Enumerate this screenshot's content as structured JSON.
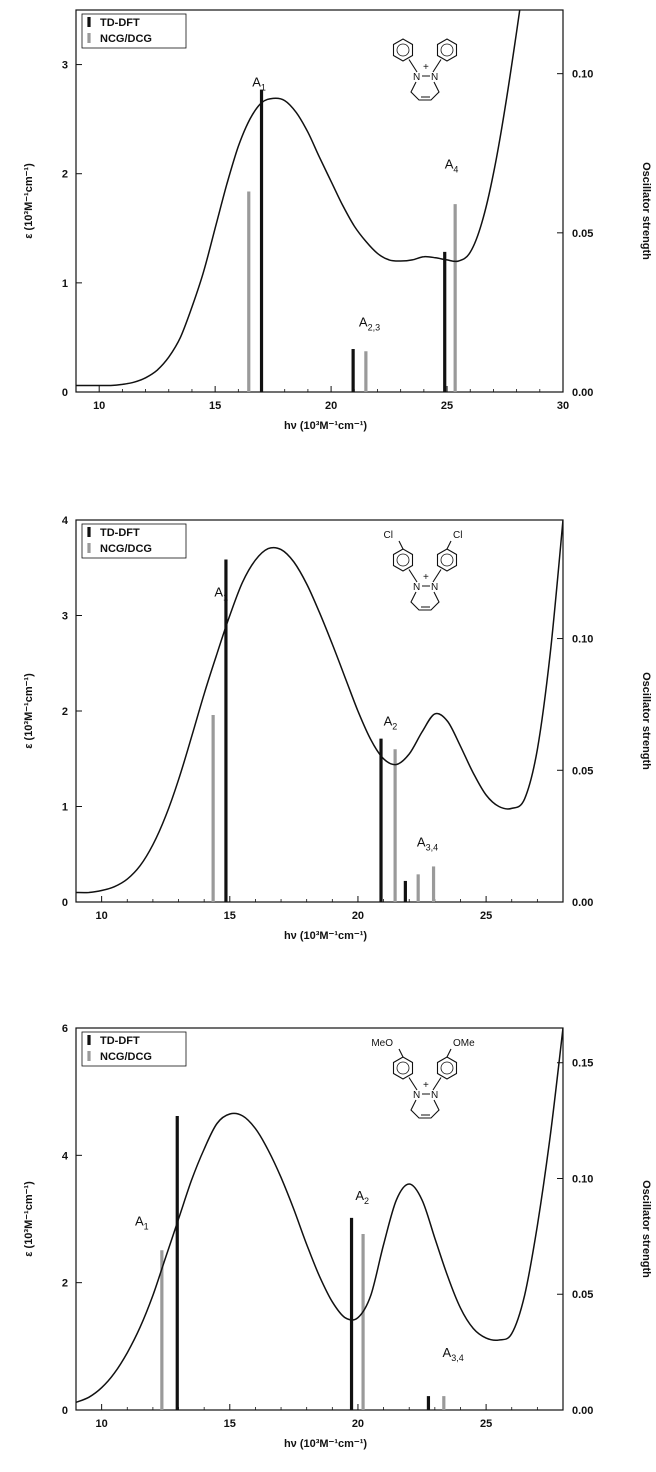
{
  "chart_data": [
    {
      "type": "line",
      "panel": "top",
      "xlim": [
        9,
        30
      ],
      "ylim": [
        0,
        3.5
      ],
      "y2lim": [
        0,
        0.12
      ],
      "xticks": [
        10,
        15,
        20,
        25,
        30
      ],
      "yticks": [
        0,
        1,
        2,
        3
      ],
      "y2ticks": [
        "0.00",
        "0.05",
        "0.10"
      ],
      "xlabel": "hν (10³M⁻¹cm⁻¹)",
      "ylabel": "ε (10³M⁻¹cm⁻¹)",
      "y2label": "Oscillator strength",
      "legend": [
        "TD-DFT",
        "NCG/DCG"
      ],
      "legend_position": "top-left",
      "spectrum": {
        "x": [
          9,
          9.5,
          10,
          10.5,
          11,
          11.5,
          12,
          12.5,
          13,
          13.5,
          14,
          14.5,
          15,
          15.5,
          16,
          16.5,
          17,
          17.5,
          18,
          18.5,
          19,
          19.5,
          20,
          20.5,
          21,
          21.5,
          22,
          22.5,
          23,
          23.5,
          24,
          24.5,
          25,
          25.5,
          26,
          26.5,
          27,
          27.5,
          28,
          28.2
        ],
        "y": [
          0.06,
          0.06,
          0.06,
          0.06,
          0.07,
          0.09,
          0.13,
          0.2,
          0.32,
          0.5,
          0.78,
          1.1,
          1.5,
          1.9,
          2.25,
          2.5,
          2.65,
          2.69,
          2.67,
          2.56,
          2.38,
          2.15,
          1.93,
          1.71,
          1.52,
          1.38,
          1.27,
          1.21,
          1.2,
          1.21,
          1.24,
          1.23,
          1.21,
          1.2,
          1.28,
          1.55,
          2.0,
          2.6,
          3.3,
          3.6
        ]
      },
      "sticks": [
        {
          "series": "TD-DFT",
          "x": 17.0,
          "f": 0.095
        },
        {
          "series": "NCG/DCG",
          "x": 16.45,
          "f": 0.063
        },
        {
          "series": "TD-DFT",
          "x": 20.95,
          "f": 0.0135
        },
        {
          "series": "NCG/DCG",
          "x": 21.5,
          "f": 0.0128
        },
        {
          "series": "TD-DFT",
          "x": 24.9,
          "f": 0.044
        },
        {
          "series": "NCG/DCG",
          "x": 25.35,
          "f": 0.059
        }
      ],
      "labels": [
        {
          "text": "A",
          "sub": "1",
          "x": 16.6,
          "y": 2.8
        },
        {
          "text": "A",
          "sub": "2,3",
          "x": 21.2,
          "y": 0.6
        },
        {
          "text": "A",
          "sub": "4",
          "x": 24.9,
          "y": 2.05
        }
      ],
      "molecule_substituent": ""
    },
    {
      "type": "line",
      "panel": "middle",
      "xlim": [
        9,
        28
      ],
      "ylim": [
        0,
        4
      ],
      "y2lim": [
        0,
        0.145
      ],
      "xticks": [
        10,
        15,
        20,
        25
      ],
      "yticks": [
        0,
        1,
        2,
        3,
        4
      ],
      "y2ticks": [
        "0.00",
        "0.05",
        "0.10"
      ],
      "xlabel": "hν (10³M⁻¹cm⁻¹)",
      "ylabel": "ε (10³M⁻¹cm⁻¹)",
      "y2label": "Oscillator strength",
      "legend": [
        "TD-DFT",
        "NCG/DCG"
      ],
      "legend_position": "top-left",
      "spectrum": {
        "x": [
          9,
          9.5,
          10,
          10.5,
          11,
          11.5,
          12,
          12.5,
          13,
          13.5,
          14,
          14.5,
          15,
          15.5,
          16,
          16.5,
          17,
          17.5,
          18,
          18.5,
          19,
          19.5,
          20,
          20.5,
          21,
          21.5,
          22,
          22.5,
          23,
          23.5,
          24,
          24.5,
          25,
          25.5,
          26,
          26.5,
          27,
          27.5,
          28
        ],
        "y": [
          0.1,
          0.1,
          0.12,
          0.16,
          0.24,
          0.38,
          0.6,
          0.9,
          1.28,
          1.72,
          2.18,
          2.6,
          3.0,
          3.35,
          3.58,
          3.7,
          3.69,
          3.56,
          3.33,
          3.03,
          2.7,
          2.35,
          2.0,
          1.7,
          1.5,
          1.44,
          1.55,
          1.78,
          1.97,
          1.89,
          1.63,
          1.35,
          1.12,
          1.0,
          0.98,
          1.08,
          1.6,
          2.6,
          4.0
        ]
      },
      "sticks": [
        {
          "series": "TD-DFT",
          "x": 14.85,
          "f": 0.13
        },
        {
          "series": "NCG/DCG",
          "x": 14.35,
          "f": 0.071
        },
        {
          "series": "TD-DFT",
          "x": 20.9,
          "f": 0.062
        },
        {
          "series": "NCG/DCG",
          "x": 21.45,
          "f": 0.058
        },
        {
          "series": "TD-DFT",
          "x": 21.85,
          "f": 0.008
        },
        {
          "series": "NCG/DCG",
          "x": 22.35,
          "f": 0.0105
        },
        {
          "series": "NCG/DCG",
          "x": 22.95,
          "f": 0.0135
        }
      ],
      "labels": [
        {
          "text": "A",
          "sub": "1",
          "x": 14.4,
          "y": 3.2
        },
        {
          "text": "A",
          "sub": "2",
          "x": 21.0,
          "y": 1.85
        },
        {
          "text": "A",
          "sub": "3,4",
          "x": 22.3,
          "y": 0.58
        }
      ],
      "molecule_substituent": "Cl"
    },
    {
      "type": "line",
      "panel": "bottom",
      "xlim": [
        9,
        28
      ],
      "ylim": [
        0,
        6
      ],
      "y2lim": [
        0,
        0.165
      ],
      "xticks": [
        10,
        15,
        20,
        25
      ],
      "yticks": [
        0,
        2,
        4,
        6
      ],
      "y2ticks": [
        "0.00",
        "0.05",
        "0.10",
        "0.15"
      ],
      "xlabel": "hν (10³M⁻¹cm⁻¹)",
      "ylabel": "ε (10³M⁻¹cm⁻¹)",
      "y2label": "Oscillator strength",
      "legend": [
        "TD-DFT",
        "NCG/DCG"
      ],
      "legend_position": "top-left",
      "spectrum": {
        "x": [
          9,
          9.5,
          10,
          10.5,
          11,
          11.5,
          12,
          12.5,
          13,
          13.5,
          14,
          14.5,
          15,
          15.5,
          16,
          16.5,
          17,
          17.5,
          18,
          18.5,
          19,
          19.5,
          20,
          20.5,
          21,
          21.5,
          22,
          22.5,
          23,
          23.5,
          24,
          24.5,
          25,
          25.5,
          26,
          26.5,
          27,
          27.5,
          28
        ],
        "y": [
          0.12,
          0.2,
          0.35,
          0.58,
          0.9,
          1.3,
          1.8,
          2.4,
          3.0,
          3.6,
          4.1,
          4.5,
          4.65,
          4.62,
          4.42,
          4.08,
          3.65,
          3.15,
          2.6,
          2.1,
          1.7,
          1.45,
          1.45,
          1.8,
          2.6,
          3.3,
          3.55,
          3.3,
          2.7,
          2.1,
          1.6,
          1.28,
          1.13,
          1.1,
          1.2,
          1.8,
          2.9,
          4.3,
          6.0
        ]
      },
      "sticks": [
        {
          "series": "TD-DFT",
          "x": 12.95,
          "f": 0.127
        },
        {
          "series": "NCG/DCG",
          "x": 12.35,
          "f": 0.069
        },
        {
          "series": "TD-DFT",
          "x": 19.75,
          "f": 0.083
        },
        {
          "series": "NCG/DCG",
          "x": 20.2,
          "f": 0.076
        },
        {
          "series": "TD-DFT",
          "x": 22.75,
          "f": 0.006
        },
        {
          "series": "NCG/DCG",
          "x": 23.35,
          "f": 0.006
        }
      ],
      "labels": [
        {
          "text": "A",
          "sub": "1",
          "x": 11.3,
          "y": 2.9
        },
        {
          "text": "A",
          "sub": "2",
          "x": 19.9,
          "y": 3.3
        },
        {
          "text": "A",
          "sub": "3,4",
          "x": 23.3,
          "y": 0.83
        }
      ],
      "molecule_substituent": "OMe"
    }
  ]
}
